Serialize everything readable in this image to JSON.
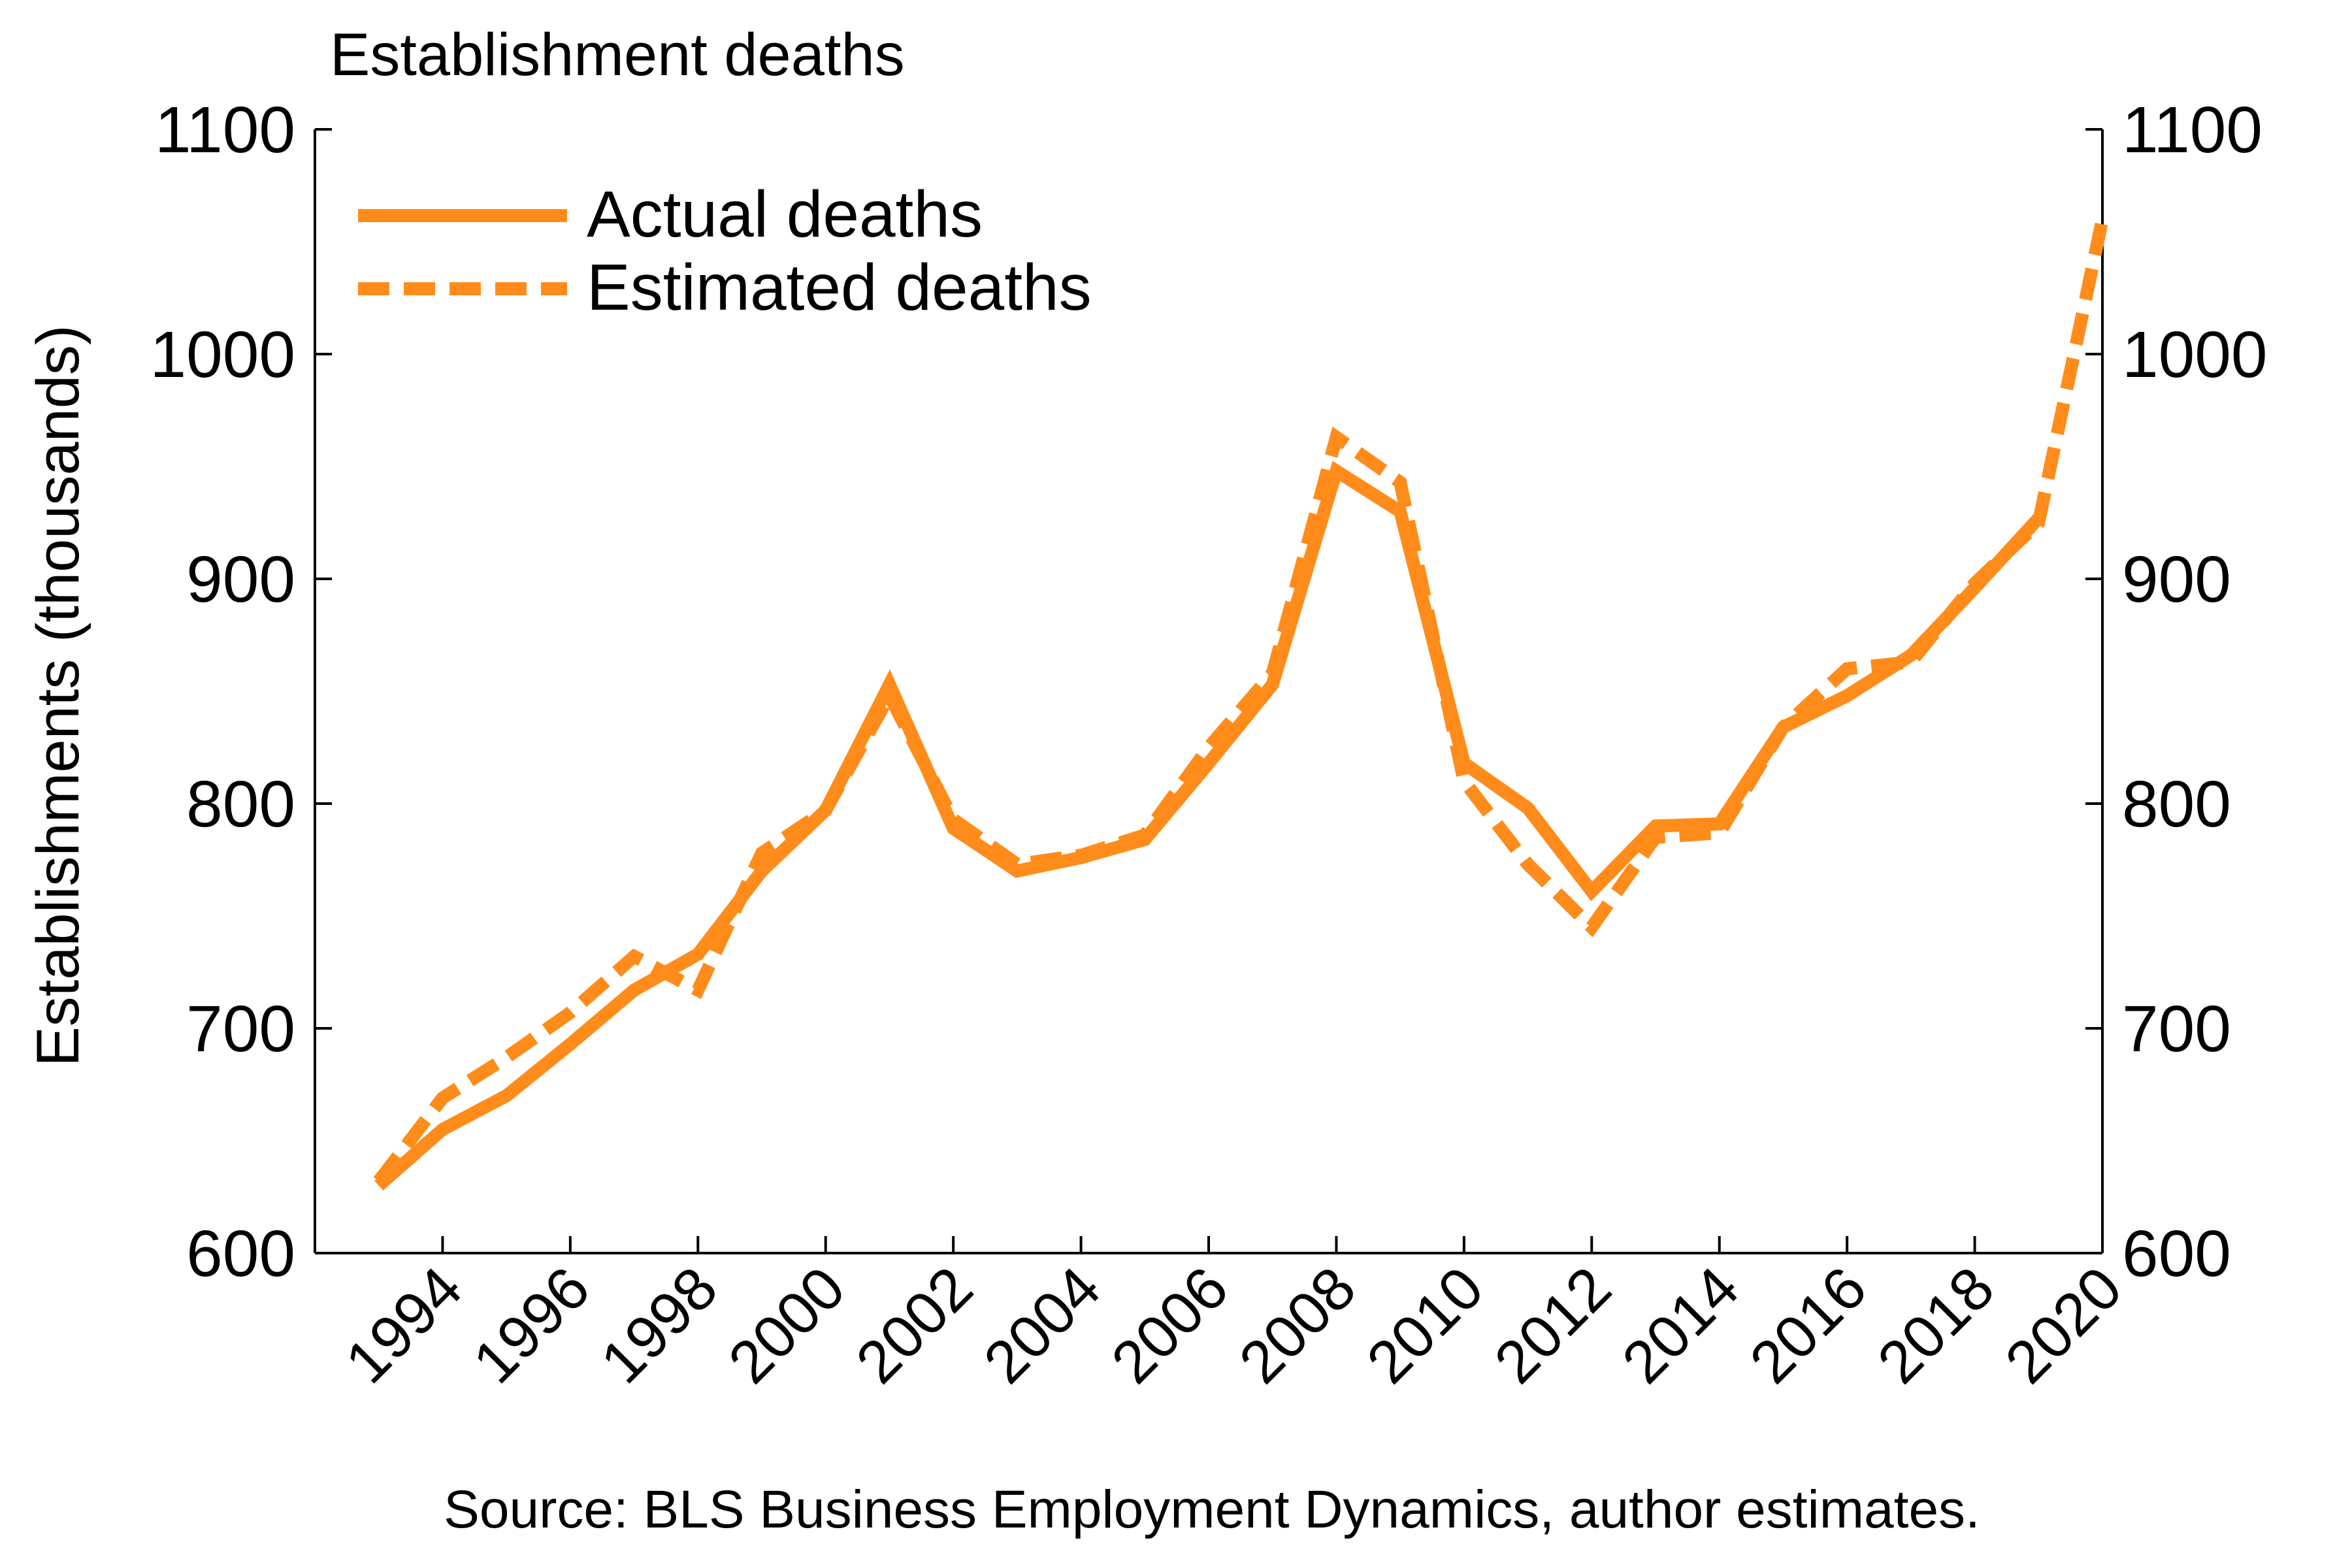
{
  "chart_data": {
    "type": "line",
    "title": "Establishment deaths",
    "ylabel": "Establishments (thousands)",
    "xlabel": "",
    "ylim": [
      600,
      1100
    ],
    "yticks": [
      600,
      700,
      800,
      900,
      1000,
      1100
    ],
    "right_axis": true,
    "xlim": [
      1992,
      2020
    ],
    "xticks": [
      1994,
      1996,
      1998,
      2000,
      2002,
      2004,
      2006,
      2008,
      2010,
      2012,
      2014,
      2016,
      2018,
      2020
    ],
    "grid": false,
    "legend_position": "top-left",
    "colors": {
      "series": "#FF8C1A",
      "axis": "#000000"
    },
    "series": [
      {
        "name": "Actual deaths",
        "style": "solid",
        "x": [
          1993,
          1994,
          1995,
          1996,
          1997,
          1998,
          1999,
          2000,
          2001,
          2002,
          2003,
          2004,
          2005,
          2006,
          2007,
          2008,
          2009,
          2010,
          2011,
          2012,
          2013,
          2014,
          2015,
          2016,
          2017,
          2018,
          2019
        ],
        "values": [
          630,
          655,
          670,
          693,
          717,
          733,
          770,
          797,
          853,
          789,
          770,
          776,
          784,
          818,
          853,
          948,
          930,
          818,
          798,
          761,
          790,
          791,
          834,
          848,
          866,
          896,
          927
        ]
      },
      {
        "name": "Estimated deaths",
        "style": "dashed",
        "x": [
          1993,
          1994,
          1995,
          1996,
          1997,
          1998,
          1999,
          2000,
          2001,
          2002,
          2003,
          2004,
          2005,
          2006,
          2007,
          2008,
          2009,
          2010,
          2011,
          2012,
          2013,
          2014,
          2015,
          2016,
          2017,
          2018,
          2019,
          2020
        ],
        "values": [
          632,
          669,
          687,
          707,
          732,
          717,
          778,
          797,
          848,
          793,
          773,
          777,
          786,
          825,
          858,
          963,
          943,
          810,
          773,
          745,
          785,
          787,
          834,
          860,
          863,
          898,
          925,
          1060
        ]
      }
    ],
    "source": "Source: BLS Business Employment Dynamics, author estimates."
  }
}
